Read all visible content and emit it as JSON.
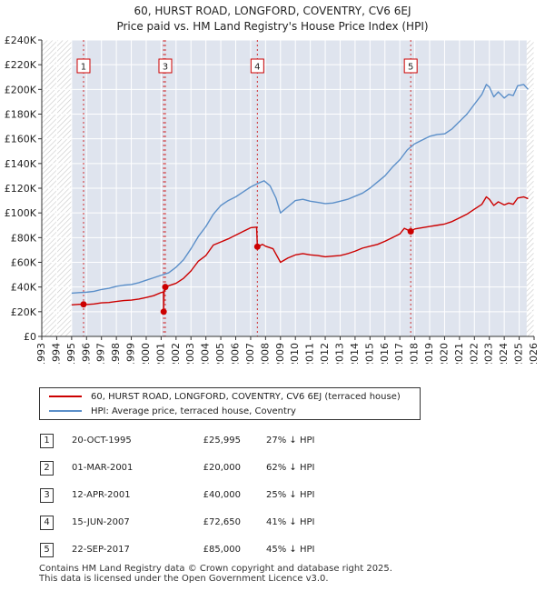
{
  "title_line1": "60, HURST ROAD, LONGFORD, COVENTRY, CV6 6EJ",
  "title_line2": "Price paid vs. HM Land Registry's House Price Index (HPI)",
  "colors": {
    "property": "#cc0000",
    "hpi": "#5b8fc9",
    "shade": "#dfe4ee",
    "grid": "#cfd5e0",
    "marker": "#cc0000"
  },
  "chart_data": {
    "type": "line",
    "xlim": [
      1993,
      2026
    ],
    "ylim": [
      0,
      240000
    ],
    "y_ticks": [
      0,
      20000,
      40000,
      60000,
      80000,
      100000,
      120000,
      140000,
      160000,
      180000,
      200000,
      220000,
      240000
    ],
    "y_tick_labels": [
      "£0",
      "£20K",
      "£40K",
      "£60K",
      "£80K",
      "£100K",
      "£120K",
      "£140K",
      "£160K",
      "£180K",
      "£200K",
      "£220K",
      "£240K"
    ],
    "x_ticks": [
      1993,
      1994,
      1995,
      1996,
      1997,
      1998,
      1999,
      2000,
      2001,
      2002,
      2003,
      2004,
      2005,
      2006,
      2007,
      2008,
      2009,
      2010,
      2011,
      2012,
      2013,
      2014,
      2015,
      2016,
      2017,
      2018,
      2019,
      2020,
      2021,
      2022,
      2023,
      2024,
      2025,
      2026
    ],
    "x_tick_labels": [
      "1993",
      "1994",
      "1995",
      "1996",
      "1997",
      "1998",
      "1999",
      "2000",
      "2001",
      "2002",
      "2003",
      "2004",
      "2005",
      "2006",
      "2007",
      "2008",
      "2009",
      "2010",
      "2011",
      "2012",
      "2013",
      "2014",
      "2015",
      "2016",
      "2017",
      "2018",
      "2019",
      "2020",
      "2021",
      "2022",
      "2023",
      "2024",
      "2025",
      "2026"
    ],
    "hatched_before": 1995.0,
    "hatched_after": 2025.5,
    "series": [
      {
        "name": "60, HURST ROAD, LONGFORD, COVENTRY, CV6 6EJ (terraced house)",
        "color": "#cc0000",
        "points": [
          [
            1995.0,
            25500
          ],
          [
            1995.5,
            26000
          ],
          [
            1995.8,
            25995
          ],
          [
            1996.0,
            25800
          ],
          [
            1996.5,
            26300
          ],
          [
            1997.0,
            27200
          ],
          [
            1997.5,
            27500
          ],
          [
            1998.0,
            28300
          ],
          [
            1998.5,
            29000
          ],
          [
            1999.0,
            29400
          ],
          [
            1999.5,
            30200
          ],
          [
            2000.0,
            31500
          ],
          [
            2000.5,
            33000
          ],
          [
            2001.0,
            35500
          ],
          [
            2001.16,
            36000
          ],
          [
            2001.17,
            20000
          ],
          [
            2001.2,
            36500
          ],
          [
            2001.28,
            40000
          ],
          [
            2001.5,
            41000
          ],
          [
            2002.0,
            43000
          ],
          [
            2002.5,
            47000
          ],
          [
            2003.0,
            53000
          ],
          [
            2003.5,
            61000
          ],
          [
            2004.0,
            65500
          ],
          [
            2004.5,
            74000
          ],
          [
            2005.0,
            76500
          ],
          [
            2005.5,
            79000
          ],
          [
            2006.0,
            82000
          ],
          [
            2006.5,
            85000
          ],
          [
            2007.0,
            88000
          ],
          [
            2007.4,
            88500
          ],
          [
            2007.45,
            72650
          ],
          [
            2007.8,
            74500
          ],
          [
            2008.0,
            73000
          ],
          [
            2008.5,
            71000
          ],
          [
            2009.0,
            60000
          ],
          [
            2009.5,
            63500
          ],
          [
            2010.0,
            66000
          ],
          [
            2010.5,
            67000
          ],
          [
            2011.0,
            66000
          ],
          [
            2011.5,
            65500
          ],
          [
            2012.0,
            64500
          ],
          [
            2012.5,
            65000
          ],
          [
            2013.0,
            65500
          ],
          [
            2013.5,
            67000
          ],
          [
            2014.0,
            69000
          ],
          [
            2014.5,
            71500
          ],
          [
            2015.0,
            73000
          ],
          [
            2015.5,
            74500
          ],
          [
            2016.0,
            77000
          ],
          [
            2016.5,
            80000
          ],
          [
            2017.0,
            83000
          ],
          [
            2017.3,
            87500
          ],
          [
            2017.73,
            85000
          ],
          [
            2018.0,
            87000
          ],
          [
            2018.5,
            88000
          ],
          [
            2019.0,
            89000
          ],
          [
            2019.5,
            90000
          ],
          [
            2020.0,
            91000
          ],
          [
            2020.5,
            93000
          ],
          [
            2021.0,
            96000
          ],
          [
            2021.5,
            99000
          ],
          [
            2022.0,
            103000
          ],
          [
            2022.5,
            107000
          ],
          [
            2022.8,
            113000
          ],
          [
            2023.0,
            111000
          ],
          [
            2023.3,
            106000
          ],
          [
            2023.6,
            109000
          ],
          [
            2024.0,
            106500
          ],
          [
            2024.3,
            108000
          ],
          [
            2024.6,
            107000
          ],
          [
            2024.9,
            112000
          ],
          [
            2025.3,
            113000
          ],
          [
            2025.6,
            111500
          ]
        ]
      },
      {
        "name": "HPI: Average price, terraced house, Coventry",
        "color": "#5b8fc9",
        "points": [
          [
            1995.0,
            35000
          ],
          [
            1995.5,
            35500
          ],
          [
            1996.0,
            35800
          ],
          [
            1996.5,
            36500
          ],
          [
            1997.0,
            38000
          ],
          [
            1997.5,
            39000
          ],
          [
            1998.0,
            40500
          ],
          [
            1998.5,
            41500
          ],
          [
            1999.0,
            42000
          ],
          [
            1999.5,
            43500
          ],
          [
            2000.0,
            45500
          ],
          [
            2000.5,
            47500
          ],
          [
            2001.0,
            49500
          ],
          [
            2001.5,
            51500
          ],
          [
            2002.0,
            56000
          ],
          [
            2002.5,
            62000
          ],
          [
            2003.0,
            71000
          ],
          [
            2003.5,
            81000
          ],
          [
            2004.0,
            89000
          ],
          [
            2004.5,
            99000
          ],
          [
            2005.0,
            106000
          ],
          [
            2005.5,
            110000
          ],
          [
            2006.0,
            113000
          ],
          [
            2006.5,
            117000
          ],
          [
            2007.0,
            121000
          ],
          [
            2007.5,
            124000
          ],
          [
            2007.9,
            126000
          ],
          [
            2008.3,
            122000
          ],
          [
            2008.7,
            112000
          ],
          [
            2009.0,
            100000
          ],
          [
            2009.5,
            105000
          ],
          [
            2010.0,
            110000
          ],
          [
            2010.5,
            111000
          ],
          [
            2011.0,
            109500
          ],
          [
            2011.5,
            108500
          ],
          [
            2012.0,
            107500
          ],
          [
            2012.5,
            108000
          ],
          [
            2013.0,
            109500
          ],
          [
            2013.5,
            111000
          ],
          [
            2014.0,
            113500
          ],
          [
            2014.5,
            116000
          ],
          [
            2015.0,
            120000
          ],
          [
            2015.5,
            125000
          ],
          [
            2016.0,
            130000
          ],
          [
            2016.5,
            137000
          ],
          [
            2017.0,
            143000
          ],
          [
            2017.5,
            151000
          ],
          [
            2018.0,
            156000
          ],
          [
            2018.5,
            159000
          ],
          [
            2019.0,
            162000
          ],
          [
            2019.5,
            163500
          ],
          [
            2020.0,
            164000
          ],
          [
            2020.5,
            168000
          ],
          [
            2021.0,
            174000
          ],
          [
            2021.5,
            180000
          ],
          [
            2022.0,
            188000
          ],
          [
            2022.5,
            196000
          ],
          [
            2022.8,
            204000
          ],
          [
            2023.0,
            202000
          ],
          [
            2023.3,
            194000
          ],
          [
            2023.6,
            198000
          ],
          [
            2024.0,
            193000
          ],
          [
            2024.3,
            196000
          ],
          [
            2024.6,
            195000
          ],
          [
            2024.9,
            203000
          ],
          [
            2025.3,
            204000
          ],
          [
            2025.6,
            200000
          ]
        ]
      }
    ],
    "sales": [
      {
        "label": "1",
        "x": 1995.8,
        "price": 25995
      },
      {
        "label": "2",
        "x": 2001.17,
        "price": 20000
      },
      {
        "label": "3",
        "x": 2001.28,
        "price": 40000
      },
      {
        "label": "4",
        "x": 2007.45,
        "price": 72650
      },
      {
        "label": "5",
        "x": 2017.73,
        "price": 85000
      }
    ],
    "flag_labels": [
      "1",
      "3",
      "4",
      "5"
    ]
  },
  "legend": {
    "property_label": "60, HURST ROAD, LONGFORD, COVENTRY, CV6 6EJ (terraced house)",
    "hpi_label": "HPI: Average price, terraced house, Coventry"
  },
  "sales_table": [
    {
      "num": "1",
      "date": "20-OCT-1995",
      "price": "£25,995",
      "diff": "27% ↓ HPI"
    },
    {
      "num": "2",
      "date": "01-MAR-2001",
      "price": "£20,000",
      "diff": "62% ↓ HPI"
    },
    {
      "num": "3",
      "date": "12-APR-2001",
      "price": "£40,000",
      "diff": "25% ↓ HPI"
    },
    {
      "num": "4",
      "date": "15-JUN-2007",
      "price": "£72,650",
      "diff": "41% ↓ HPI"
    },
    {
      "num": "5",
      "date": "22-SEP-2017",
      "price": "£85,000",
      "diff": "45% ↓ HPI"
    }
  ],
  "footer_line1": "Contains HM Land Registry data © Crown copyright and database right 2025.",
  "footer_line2": "This data is licensed under the Open Government Licence v3.0."
}
